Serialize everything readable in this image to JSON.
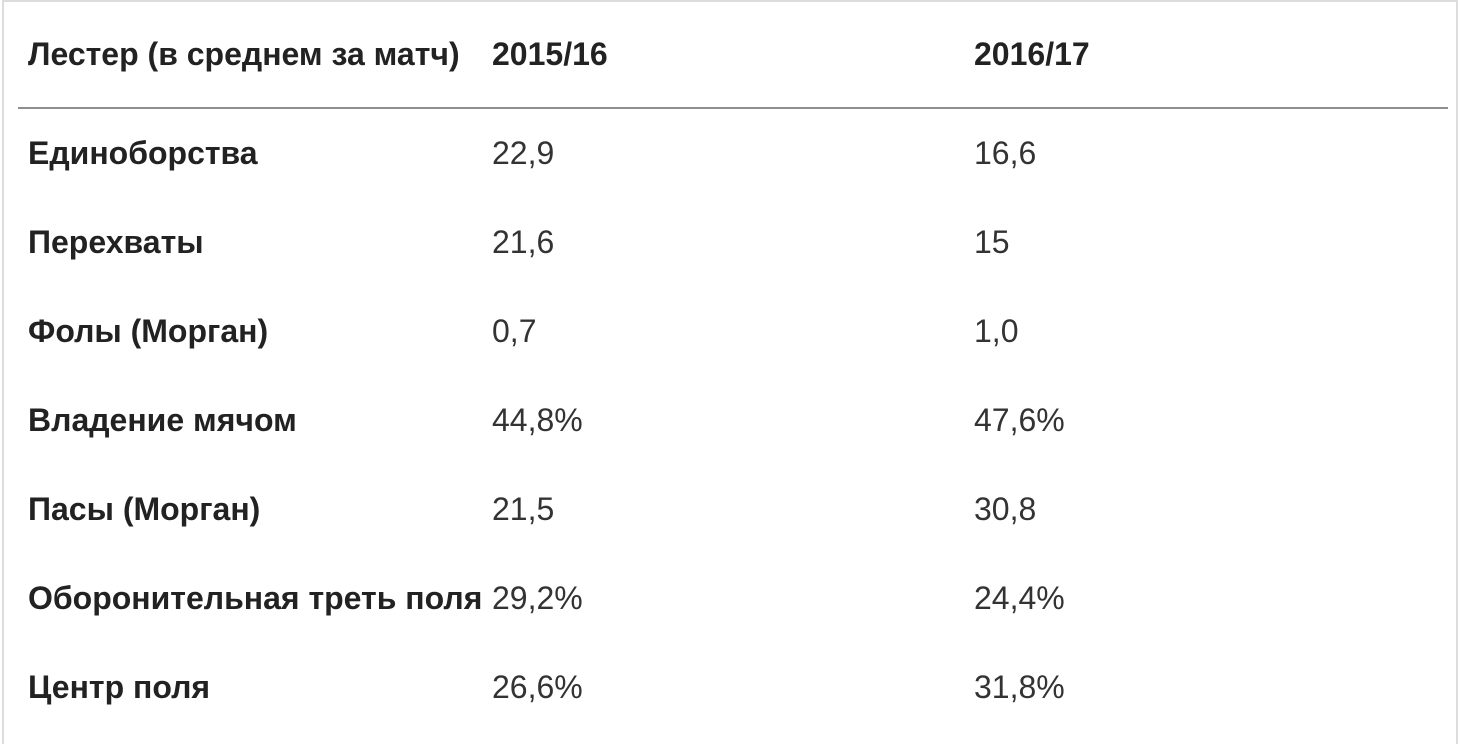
{
  "table": {
    "headers": [
      "Лестер (в среднем за матч)",
      "2015/16",
      "2016/17"
    ],
    "rows": [
      [
        "Единоборства",
        "22,9",
        "16,6"
      ],
      [
        "Перехваты",
        "21,6",
        "15"
      ],
      [
        "Фолы (Морган)",
        "0,7",
        "1,0"
      ],
      [
        "Владение мячом",
        "44,8%",
        "47,6%"
      ],
      [
        "Пасы (Морган)",
        "21,5",
        "30,8"
      ],
      [
        "Оборонительная треть поля",
        "29,2%",
        "24,4%"
      ],
      [
        "Центр поля",
        "26,6%",
        "31,8%"
      ]
    ]
  }
}
